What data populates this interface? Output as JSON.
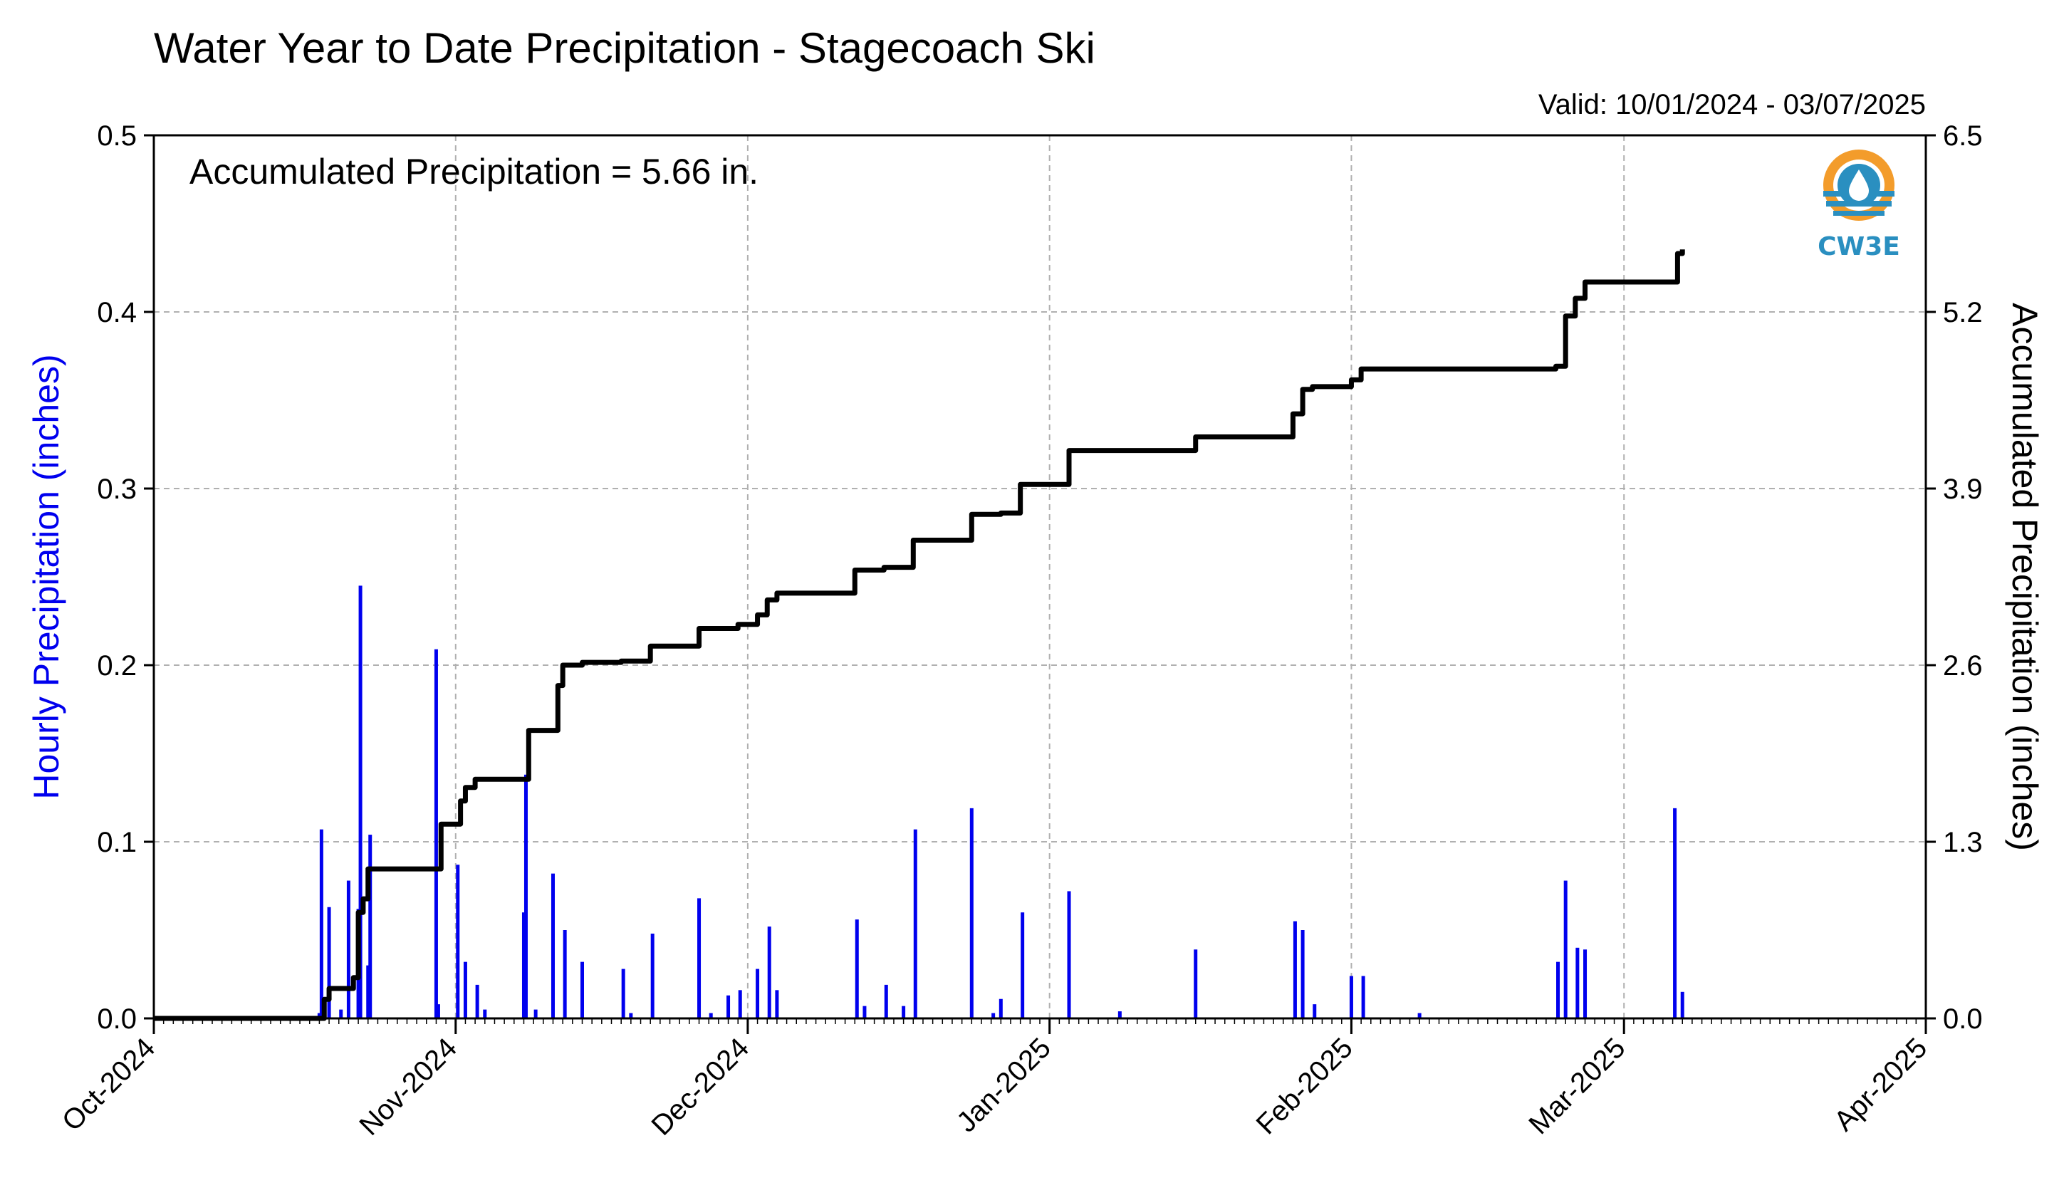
{
  "chart_data": {
    "type": "bar",
    "title": "Water Year to Date Precipitation - Stagecoach Ski",
    "valid_text": "Valid: 10/01/2024 - 03/07/2025",
    "annotation": "Accumulated Precipitation = 5.66 in.",
    "logo_text": "CW3E",
    "ylabel_left": "Hourly Precipitation (inches)",
    "ylabel_right": "Accumulated Precipitation (inches)",
    "xlim": [
      "2024-10-01",
      "2025-04-01"
    ],
    "ylim_left": [
      0,
      0.5
    ],
    "ylim_right": [
      0,
      6.5
    ],
    "yticks_left": [
      "0.0",
      "0.1",
      "0.2",
      "0.3",
      "0.4",
      "0.5"
    ],
    "yticks_right": [
      "0.0",
      "1.3",
      "2.6",
      "3.9",
      "5.2",
      "6.5"
    ],
    "xticks": [
      {
        "date": "2024-10-01",
        "label": "Oct-2024"
      },
      {
        "date": "2024-11-01",
        "label": "Nov-2024"
      },
      {
        "date": "2024-12-01",
        "label": "Dec-2024"
      },
      {
        "date": "2025-01-01",
        "label": "Jan-2025"
      },
      {
        "date": "2025-02-01",
        "label": "Feb-2025"
      },
      {
        "date": "2025-03-01",
        "label": "Mar-2025"
      },
      {
        "date": "2025-04-01",
        "label": "Apr-2025"
      }
    ],
    "grid": true,
    "colors": {
      "hourly": "#0000ee",
      "accumulated": "#000000",
      "grid": "#b0b0b0",
      "logo_orange": "#f39c2b",
      "logo_blue": "#2a8fc0"
    },
    "series": [
      {
        "name": "Hourly Precipitation (inches)",
        "kind": "bar",
        "points": [
          [
            "2024-10-18",
            0.003
          ],
          [
            "2024-10-18",
            0.107
          ],
          [
            "2024-10-19",
            0.063
          ],
          [
            "2024-10-20",
            0.005
          ],
          [
            "2024-10-21",
            0.078
          ],
          [
            "2024-10-22",
            0.245
          ],
          [
            "2024-10-22",
            0.062
          ],
          [
            "2024-10-23",
            0.104
          ],
          [
            "2024-10-23",
            0.03
          ],
          [
            "2024-10-30",
            0.008
          ],
          [
            "2024-10-30",
            0.209
          ],
          [
            "2024-11-01",
            0.087
          ],
          [
            "2024-11-02",
            0.032
          ],
          [
            "2024-11-03",
            0.019
          ],
          [
            "2024-11-04",
            0.005
          ],
          [
            "2024-11-08",
            0.138
          ],
          [
            "2024-11-08",
            0.06
          ],
          [
            "2024-11-09",
            0.005
          ],
          [
            "2024-11-11",
            0.082
          ],
          [
            "2024-11-12",
            0.05
          ],
          [
            "2024-11-14",
            0.032
          ],
          [
            "2024-11-18",
            0.028
          ],
          [
            "2024-11-19",
            0.003
          ],
          [
            "2024-11-21",
            0.048
          ],
          [
            "2024-11-26",
            0.068
          ],
          [
            "2024-11-27",
            0.003
          ],
          [
            "2024-11-29",
            0.013
          ],
          [
            "2024-11-30",
            0.016
          ],
          [
            "2024-12-02",
            0.028
          ],
          [
            "2024-12-03",
            0.052
          ],
          [
            "2024-12-04",
            0.016
          ],
          [
            "2024-12-12",
            0.056
          ],
          [
            "2024-12-13",
            0.007
          ],
          [
            "2024-12-15",
            0.019
          ],
          [
            "2024-12-17",
            0.007
          ],
          [
            "2024-12-18",
            0.107
          ],
          [
            "2024-12-24",
            0.119
          ],
          [
            "2024-12-26",
            0.003
          ],
          [
            "2024-12-27",
            0.011
          ],
          [
            "2024-12-29",
            0.06
          ],
          [
            "2025-01-03",
            0.072
          ],
          [
            "2025-01-08",
            0.004
          ],
          [
            "2025-01-16",
            0.039
          ],
          [
            "2025-01-26",
            0.055
          ],
          [
            "2025-01-27",
            0.05
          ],
          [
            "2025-01-28",
            0.008
          ],
          [
            "2025-02-01",
            0.024
          ],
          [
            "2025-02-02",
            0.024
          ],
          [
            "2025-02-08",
            0.003
          ],
          [
            "2025-02-22",
            0.032
          ],
          [
            "2025-02-23",
            0.078
          ],
          [
            "2025-02-24",
            0.04
          ],
          [
            "2025-02-25",
            0.039
          ],
          [
            "2025-03-06",
            0.119
          ],
          [
            "2025-03-07",
            0.015
          ]
        ]
      },
      {
        "name": "Accumulated Precipitation (inches)",
        "kind": "step",
        "points": [
          [
            "2024-10-01",
            0.0
          ],
          [
            "2024-10-18",
            0.0
          ],
          [
            "2024-10-18.5",
            0.14
          ],
          [
            "2024-10-19",
            0.22
          ],
          [
            "2024-10-21",
            0.22
          ],
          [
            "2024-10-21.5",
            0.3
          ],
          [
            "2024-10-22",
            0.78
          ],
          [
            "2024-10-22.5",
            0.88
          ],
          [
            "2024-10-23",
            1.1
          ],
          [
            "2024-10-30",
            1.1
          ],
          [
            "2024-10-30.5",
            1.43
          ],
          [
            "2024-11-01",
            1.43
          ],
          [
            "2024-11-01.5",
            1.6
          ],
          [
            "2024-11-02",
            1.7
          ],
          [
            "2024-11-03",
            1.76
          ],
          [
            "2024-11-08",
            1.76
          ],
          [
            "2024-11-08.5",
            2.12
          ],
          [
            "2024-11-11",
            2.12
          ],
          [
            "2024-11-11.5",
            2.45
          ],
          [
            "2024-11-12",
            2.6
          ],
          [
            "2024-11-14",
            2.62
          ],
          [
            "2024-11-18",
            2.63
          ],
          [
            "2024-11-21",
            2.74
          ],
          [
            "2024-11-26",
            2.87
          ],
          [
            "2024-11-30",
            2.9
          ],
          [
            "2024-12-02",
            2.97
          ],
          [
            "2024-12-03",
            3.08
          ],
          [
            "2024-12-04",
            3.13
          ],
          [
            "2024-12-12",
            3.3
          ],
          [
            "2024-12-15",
            3.32
          ],
          [
            "2024-12-18",
            3.52
          ],
          [
            "2024-12-24",
            3.71
          ],
          [
            "2024-12-27",
            3.72
          ],
          [
            "2024-12-29",
            3.93
          ],
          [
            "2025-01-03",
            4.18
          ],
          [
            "2025-01-16",
            4.28
          ],
          [
            "2025-01-26",
            4.45
          ],
          [
            "2025-01-27",
            4.63
          ],
          [
            "2025-01-28",
            4.65
          ],
          [
            "2025-02-01",
            4.7
          ],
          [
            "2025-02-02",
            4.78
          ],
          [
            "2025-02-22",
            4.8
          ],
          [
            "2025-02-23",
            5.17
          ],
          [
            "2025-02-24",
            5.3
          ],
          [
            "2025-02-25",
            5.42
          ],
          [
            "2025-03-06",
            5.42
          ],
          [
            "2025-03-06.5",
            5.63
          ],
          [
            "2025-03-07",
            5.66
          ]
        ]
      }
    ]
  }
}
